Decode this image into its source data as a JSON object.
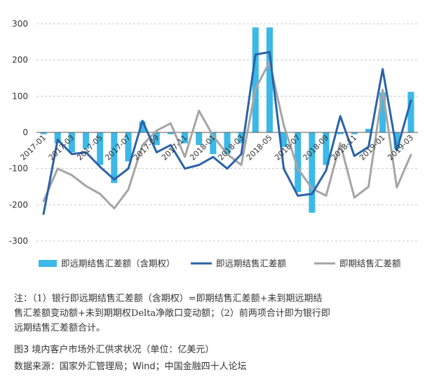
{
  "chart_data": {
    "type": "bar+line",
    "x": [
      "2017-01",
      "2017-02",
      "2017-03",
      "2017-04",
      "2017-05",
      "2017-06",
      "2017-07",
      "2017-08",
      "2017-09",
      "2017-10",
      "2017-11",
      "2017-12",
      "2018-01",
      "2018-02",
      "2018-03",
      "2018-04",
      "2018-05",
      "2018-06",
      "2018-07",
      "2018-08",
      "2018-09",
      "2018-10",
      "2018-11",
      "2018-12",
      "2019-01",
      "2019-02",
      "2019-03"
    ],
    "tick_labels": [
      "2017-01",
      "2017-03",
      "2017-05",
      "2017-07",
      "2017-09",
      "2017-11",
      "2018-01",
      "2018-03",
      "2018-05",
      "2018-07",
      "2018-09",
      "2018-11",
      "2019-01",
      "2019-03"
    ],
    "ylim": [
      -300,
      300
    ],
    "yticks": [
      -300,
      -200,
      -100,
      0,
      100,
      200,
      300
    ],
    "grid": true,
    "legend_position": "bottom",
    "series": [
      {
        "name": "即远期结售汇差额（含期权）",
        "type": "bar",
        "color": "#3cb9e8",
        "values": [
          -5,
          -30,
          -55,
          -45,
          -90,
          -140,
          -80,
          30,
          -35,
          -5,
          -30,
          -35,
          -60,
          -60,
          -30,
          290,
          290,
          -40,
          -165,
          -222,
          -90,
          -5,
          -5,
          10,
          110,
          -45,
          112
        ]
      },
      {
        "name": "即远期结售汇差额",
        "type": "line",
        "color": "#2a63a9",
        "values": [
          -225,
          -20,
          -60,
          -55,
          -95,
          -130,
          -100,
          32,
          -55,
          -35,
          -100,
          -90,
          -68,
          -100,
          -60,
          215,
          222,
          -100,
          -175,
          -170,
          -105,
          45,
          -65,
          -40,
          175,
          -50,
          88
        ]
      },
      {
        "name": "即期结售汇差额",
        "type": "line",
        "color": "#a5a5a5",
        "values": [
          -190,
          -100,
          -118,
          -148,
          -170,
          -210,
          -158,
          -35,
          5,
          25,
          -68,
          60,
          -10,
          -60,
          -90,
          120,
          195,
          20,
          -100,
          -155,
          -175,
          -30,
          -180,
          -150,
          118,
          -152,
          -62
        ]
      }
    ]
  },
  "notes": {
    "line1": "注：（1）银行即远期结售汇差额（含期权）=即期结售汇差额+未到期远期结",
    "line2": "售汇差额变动额+未到期期权Delta净敞口变动额；（2）前两项合计即为银行即",
    "line3": "远期结售汇差额合计。"
  },
  "figure": {
    "title": "图3    境内客户市场外汇供求状况（单位：亿美元）",
    "source": "数据来源：国家外汇管理局；Wind；中国金融四十人论坛"
  }
}
